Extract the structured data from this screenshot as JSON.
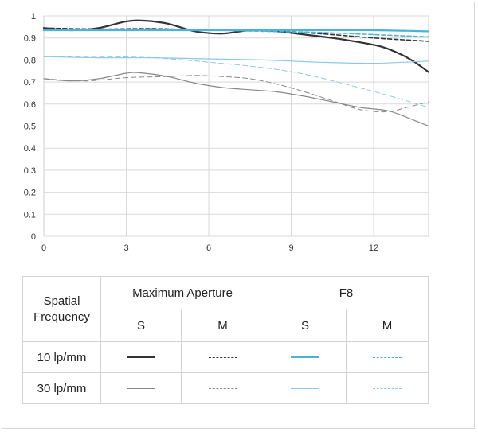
{
  "chart_data": {
    "type": "line",
    "xlim": [
      0,
      14
    ],
    "ylim": [
      0,
      1
    ],
    "x_ticks": [
      "0",
      "3",
      "6",
      "9",
      "12"
    ],
    "y_ticks": [
      "0",
      "0.1",
      "0.2",
      "0.3",
      "0.4",
      "0.5",
      "0.6",
      "0.7",
      "0.8",
      "0.9",
      "1"
    ],
    "grid": true,
    "series": [
      {
        "aperture": "Maximum Aperture",
        "direction": "S",
        "frequency": "10 lp/mm",
        "color": "#333333",
        "dash": "solid",
        "width": 2.2,
        "points": [
          [
            0,
            0.945
          ],
          [
            1,
            0.935
          ],
          [
            2,
            0.945
          ],
          [
            3,
            0.975
          ],
          [
            3.7,
            0.978
          ],
          [
            4.5,
            0.965
          ],
          [
            5.5,
            0.93
          ],
          [
            6.5,
            0.92
          ],
          [
            7.5,
            0.935
          ],
          [
            8.5,
            0.93
          ],
          [
            9.5,
            0.915
          ],
          [
            10.5,
            0.9
          ],
          [
            11.5,
            0.88
          ],
          [
            12.3,
            0.86
          ],
          [
            13,
            0.825
          ],
          [
            13.5,
            0.79
          ],
          [
            14,
            0.745
          ]
        ]
      },
      {
        "aperture": "Maximum Aperture",
        "direction": "M",
        "frequency": "10 lp/mm",
        "color": "#333333",
        "dash": "dashed",
        "width": 1.6,
        "points": [
          [
            0,
            0.945
          ],
          [
            2,
            0.94
          ],
          [
            4,
            0.942
          ],
          [
            6,
            0.935
          ],
          [
            8,
            0.935
          ],
          [
            10,
            0.92
          ],
          [
            12,
            0.9
          ],
          [
            14,
            0.885
          ]
        ]
      },
      {
        "aperture": "Maximum Aperture",
        "direction": "S",
        "frequency": "30 lp/mm",
        "color": "#888888",
        "dash": "solid",
        "width": 1.2,
        "points": [
          [
            0,
            0.715
          ],
          [
            1,
            0.705
          ],
          [
            2,
            0.715
          ],
          [
            3,
            0.74
          ],
          [
            3.5,
            0.742
          ],
          [
            4.5,
            0.725
          ],
          [
            5.5,
            0.695
          ],
          [
            6.5,
            0.675
          ],
          [
            7.5,
            0.665
          ],
          [
            8.5,
            0.655
          ],
          [
            9.5,
            0.635
          ],
          [
            10.5,
            0.61
          ],
          [
            11.5,
            0.585
          ],
          [
            12.5,
            0.57
          ],
          [
            13.2,
            0.54
          ],
          [
            14,
            0.5
          ]
        ]
      },
      {
        "aperture": "Maximum Aperture",
        "direction": "M",
        "frequency": "30 lp/mm",
        "color": "#888888",
        "dash": "dashed",
        "width": 1.0,
        "points": [
          [
            0,
            0.715
          ],
          [
            1.5,
            0.705
          ],
          [
            3,
            0.72
          ],
          [
            4.5,
            0.725
          ],
          [
            5.5,
            0.73
          ],
          [
            6.5,
            0.725
          ],
          [
            7.5,
            0.715
          ],
          [
            8.5,
            0.69
          ],
          [
            9.5,
            0.655
          ],
          [
            10.5,
            0.615
          ],
          [
            11.5,
            0.575
          ],
          [
            12.5,
            0.565
          ],
          [
            13.2,
            0.585
          ],
          [
            14,
            0.61
          ]
        ]
      },
      {
        "aperture": "F8",
        "direction": "S",
        "frequency": "10 lp/mm",
        "color": "#4ab3d8",
        "dash": "solid",
        "width": 2.2,
        "points": [
          [
            0,
            0.935
          ],
          [
            2,
            0.935
          ],
          [
            4,
            0.935
          ],
          [
            6,
            0.935
          ],
          [
            8,
            0.935
          ],
          [
            10,
            0.935
          ],
          [
            12,
            0.935
          ],
          [
            14,
            0.93
          ]
        ]
      },
      {
        "aperture": "F8",
        "direction": "M",
        "frequency": "10 lp/mm",
        "color": "#4ab3d8",
        "dash": "dashed",
        "width": 1.6,
        "points": [
          [
            0,
            0.935
          ],
          [
            2,
            0.935
          ],
          [
            4,
            0.935
          ],
          [
            6,
            0.935
          ],
          [
            8,
            0.93
          ],
          [
            10,
            0.925
          ],
          [
            12,
            0.915
          ],
          [
            14,
            0.905
          ]
        ]
      },
      {
        "aperture": "F8",
        "direction": "S",
        "frequency": "30 lp/mm",
        "color": "#8cc9e6",
        "dash": "solid",
        "width": 1.2,
        "points": [
          [
            0,
            0.815
          ],
          [
            2,
            0.81
          ],
          [
            4,
            0.81
          ],
          [
            6,
            0.805
          ],
          [
            8,
            0.8
          ],
          [
            10,
            0.79
          ],
          [
            12,
            0.785
          ],
          [
            14,
            0.795
          ]
        ]
      },
      {
        "aperture": "F8",
        "direction": "M",
        "frequency": "30 lp/mm",
        "color": "#8cc9e6",
        "dash": "dashed",
        "width": 1.0,
        "points": [
          [
            0,
            0.815
          ],
          [
            2,
            0.815
          ],
          [
            4,
            0.81
          ],
          [
            6,
            0.79
          ],
          [
            8,
            0.765
          ],
          [
            9.5,
            0.735
          ],
          [
            11,
            0.69
          ],
          [
            12.5,
            0.64
          ],
          [
            14,
            0.585
          ]
        ]
      }
    ]
  },
  "legend": {
    "row_header": "Spatial Frequency",
    "groups": [
      "Maximum Aperture",
      "F8"
    ],
    "directions": [
      "S",
      "M",
      "S",
      "M"
    ],
    "frequencies": [
      "10 lp/mm",
      "30 lp/mm"
    ]
  }
}
